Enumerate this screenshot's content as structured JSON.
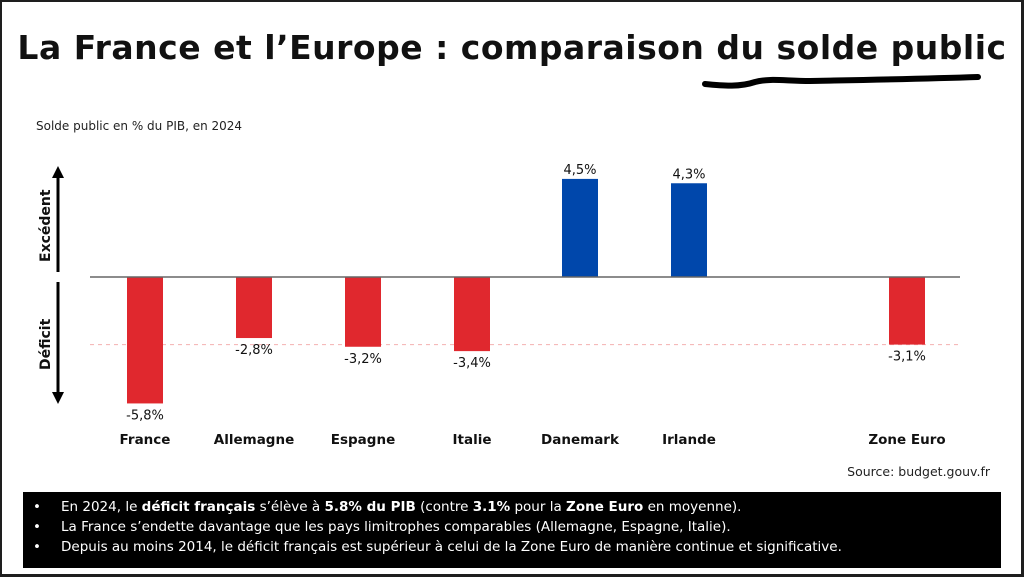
{
  "title": "La France et l’Europe : comparaison du solde public",
  "subtitle": "Solde public en % du PIB, en 2024",
  "source": "Source: budget.gouv.fr",
  "notes": [
    [
      {
        "t": "En 2024, le "
      },
      {
        "t": "déficit français",
        "b": true
      },
      {
        "t": " s’élève à "
      },
      {
        "t": "5.8% du PIB",
        "b": true
      },
      {
        "t": " (contre "
      },
      {
        "t": "3.1%",
        "b": true
      },
      {
        "t": " pour la "
      },
      {
        "t": "Zone Euro",
        "b": true
      },
      {
        "t": " en moyenne)."
      }
    ],
    [
      {
        "t": "La France s’endette davantage que les pays limitrophes comparables (Allemagne, Espagne, Italie)."
      }
    ],
    [
      {
        "t": "Depuis au moins 2014, le déficit français est supérieur à celui de la Zone Euro de manière continue et significative."
      }
    ]
  ],
  "colors": {
    "deficit": "#e0282e",
    "excedent": "#0047ab",
    "reference_line": "#f4b0b0"
  },
  "chart_data": {
    "type": "bar",
    "title": "Solde public en % du PIB, en 2024",
    "xlabel": "",
    "ylabel_positive": "Excédent",
    "ylabel_negative": "Déficit",
    "categories": [
      "France",
      "Allemagne",
      "Espagne",
      "Italie",
      "Danemark",
      "Irlande",
      "",
      "Zone Euro"
    ],
    "values": [
      -5.8,
      -2.8,
      -3.2,
      -3.4,
      4.5,
      4.3,
      null,
      -3.1
    ],
    "value_labels": [
      "-5,8%",
      "-2,8%",
      "-3,2%",
      "-3,4%",
      "4,5%",
      "4,3%",
      "",
      "-3,1%"
    ],
    "reference_line": -3.1,
    "ylim": [
      -5.8,
      4.5
    ],
    "grid": false,
    "legend": "none"
  }
}
